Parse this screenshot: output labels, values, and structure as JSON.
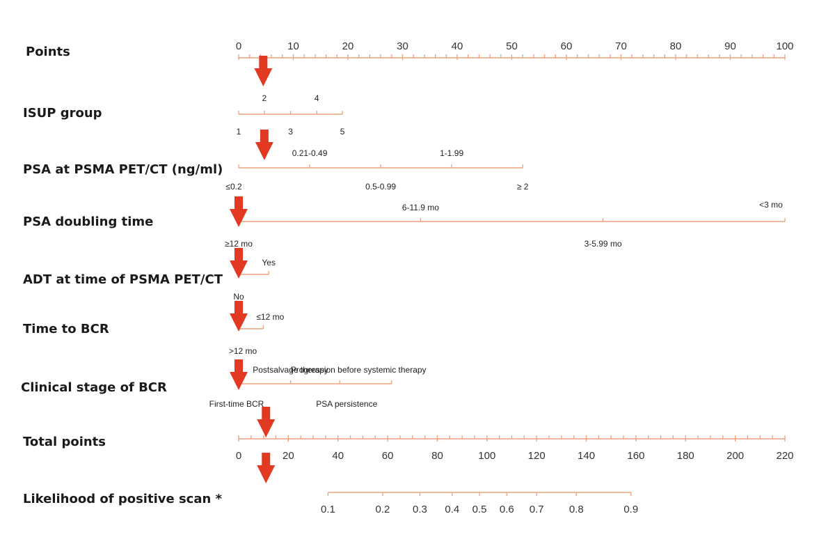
{
  "chart_data": {
    "type": "nomogram",
    "colors": {
      "axis": "#e9a27c",
      "arrow": "#e23a22",
      "text": "#222222"
    },
    "rows": [
      {
        "label": "Points",
        "min": 0,
        "max": 100,
        "ticks": [
          "0",
          "10",
          "20",
          "30",
          "40",
          "50",
          "60",
          "70",
          "80",
          "90",
          "100"
        ]
      },
      {
        "label": "ISUP group",
        "points_range": [
          0,
          19
        ],
        "levels": [
          {
            "label": "1",
            "points": 0
          },
          {
            "label": "2",
            "points": 4.7
          },
          {
            "label": "3",
            "points": 9.5
          },
          {
            "label": "4",
            "points": 14.3
          },
          {
            "label": "5",
            "points": 19
          }
        ]
      },
      {
        "label": "PSA at PSMA PET/CT (ng/ml)",
        "points_range": [
          0,
          52
        ],
        "levels": [
          {
            "label": "≤0.2",
            "points": 0
          },
          {
            "label": "0.21-0.49",
            "points": 13
          },
          {
            "label": "0.5-0.99",
            "points": 26
          },
          {
            "label": "1-1.99",
            "points": 39
          },
          {
            "label": "≥ 2",
            "points": 52
          }
        ]
      },
      {
        "label": "PSA doubling time",
        "points_range": [
          0,
          100
        ],
        "levels": [
          {
            "label": "≥12 mo",
            "points": 0
          },
          {
            "label": "6-11.9 mo",
            "points": 33.3
          },
          {
            "label": "3-5.99 mo",
            "points": 66.7
          },
          {
            "label": "<3 mo",
            "points": 100
          }
        ]
      },
      {
        "label": "ADT at time of PSMA PET/CT",
        "points_range": [
          0,
          5.5
        ],
        "levels": [
          {
            "label": "No",
            "points": 0
          },
          {
            "label": "Yes",
            "points": 5.5
          }
        ]
      },
      {
        "label": "Time to BCR",
        "points_range": [
          0,
          4.5
        ],
        "levels": [
          {
            "label": ">12 mo",
            "points": 0
          },
          {
            "label": "≤12 mo",
            "points": 4.5
          }
        ]
      },
      {
        "label": "Clinical stage of BCR",
        "points_range": [
          0,
          28
        ],
        "levels": [
          {
            "label": "First-time BCR",
            "points": 0
          },
          {
            "label": "Postsalvage therapy",
            "points": 9.5
          },
          {
            "label": "PSA persistence",
            "points": 18.5
          },
          {
            "label": "Progression before systemic therapy",
            "points": 28
          }
        ]
      },
      {
        "label": "Total points",
        "min": 0,
        "max": 220,
        "ticks": [
          "0",
          "20",
          "40",
          "60",
          "80",
          "100",
          "120",
          "140",
          "160",
          "180",
          "200",
          "220"
        ]
      },
      {
        "label": "Likelihood of positive scan *",
        "values": [
          {
            "label": "0.1",
            "total_points": 36
          },
          {
            "label": "0.2",
            "total_points": 58
          },
          {
            "label": "0.3",
            "total_points": 73
          },
          {
            "label": "0.4",
            "total_points": 86
          },
          {
            "label": "0.5",
            "total_points": 97
          },
          {
            "label": "0.6",
            "total_points": 108
          },
          {
            "label": "0.7",
            "total_points": 120
          },
          {
            "label": "0.8",
            "total_points": 136
          },
          {
            "label": "0.9",
            "total_points": 158
          }
        ]
      }
    ],
    "arrows": [
      {
        "row": "Points",
        "value": 4.5
      },
      {
        "row": "ISUP group",
        "value": 4.7
      },
      {
        "row": "PSA doubling time",
        "value": 0
      },
      {
        "row": "ADT at time of PSMA PET/CT",
        "value": 0
      },
      {
        "row": "Time to BCR",
        "value": 0
      },
      {
        "row": "Clinical stage of BCR",
        "value": 0
      },
      {
        "row": "Total points",
        "value": 11
      },
      {
        "row": "Likelihood of positive scan *",
        "value": 11
      }
    ]
  }
}
